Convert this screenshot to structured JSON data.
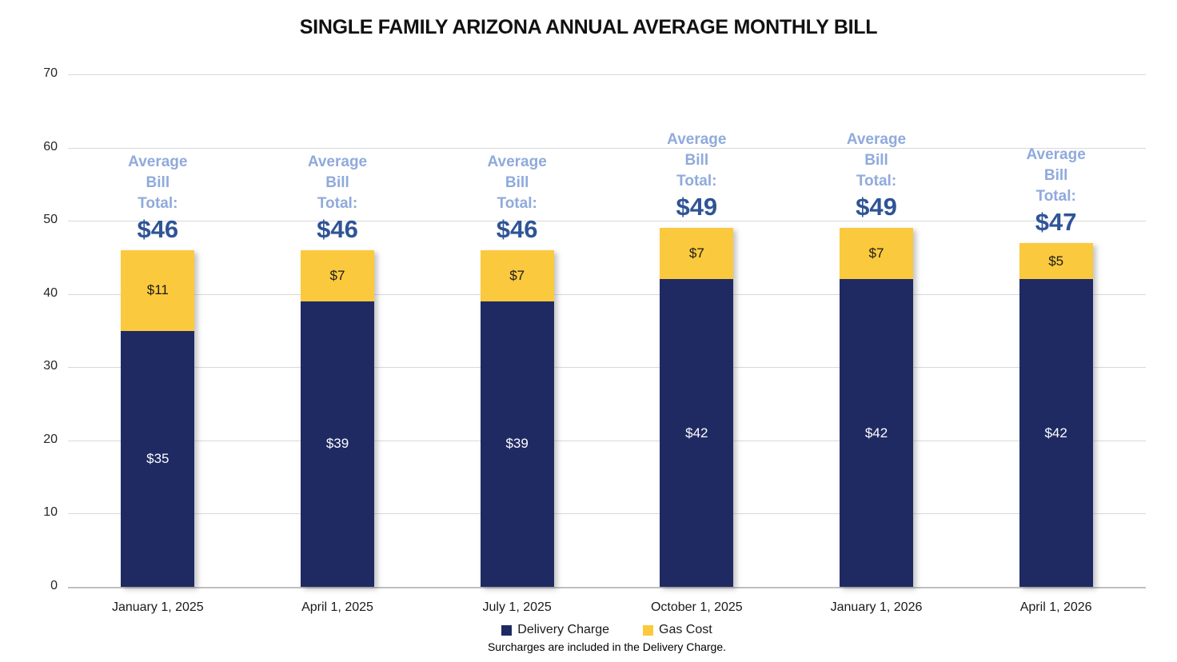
{
  "title": "SINGLE FAMILY ARIZONA ANNUAL AVERAGE MONTHLY BILL",
  "annotation_lines": [
    "Average",
    "Bill",
    "Total:"
  ],
  "chart_data": {
    "type": "bar",
    "stacked": true,
    "title": "SINGLE FAMILY ARIZONA ANNUAL AVERAGE MONTHLY BILL",
    "categories": [
      "January 1, 2025",
      "April 1, 2025",
      "July 1, 2025",
      "October 1, 2025",
      "January 1, 2026",
      "April 1, 2026"
    ],
    "series": [
      {
        "name": "Delivery Charge",
        "color": "#1f2a63",
        "label_color": "#ffffff",
        "values": [
          35,
          39,
          39,
          42,
          42,
          42
        ],
        "labels": [
          "$35",
          "$39",
          "$39",
          "$42",
          "$42",
          "$42"
        ]
      },
      {
        "name": "Gas Cost",
        "color": "#fbc93d",
        "label_color": "#1a1a1a",
        "values": [
          11,
          7,
          7,
          7,
          7,
          5
        ],
        "labels": [
          "$11",
          "$7",
          "$7",
          "$7",
          "$7",
          "$5"
        ]
      }
    ],
    "totals": [
      "$46",
      "$46",
      "$46",
      "$49",
      "$49",
      "$47"
    ],
    "total_values": [
      46,
      46,
      46,
      49,
      49,
      47
    ],
    "xlabel": "",
    "ylabel": "",
    "ylim": [
      0,
      70
    ],
    "yticks": [
      0,
      10,
      20,
      30,
      40,
      50,
      60,
      70
    ],
    "grid": true,
    "legend_position": "bottom",
    "footnote": "Surcharges are included in the Delivery Charge."
  },
  "colors": {
    "delivery": "#1f2a63",
    "gas": "#fbc93d",
    "annotation_label": "#8faadc",
    "annotation_total": "#2f5496",
    "gridline": "#d9d9d9",
    "axis_text": "#262626"
  }
}
